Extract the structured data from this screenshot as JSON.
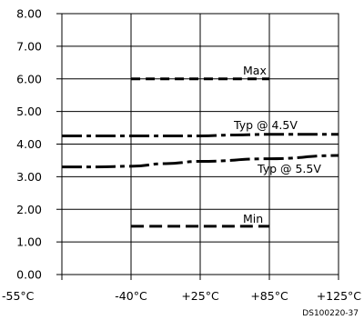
{
  "chart_data": {
    "type": "line",
    "x_categories": [
      "-55°C",
      "-40°C",
      "+25°C",
      "+85°C",
      "+125°C"
    ],
    "y_ticks": [
      "0.00",
      "1.00",
      "2.00",
      "3.00",
      "4.00",
      "5.00",
      "6.00",
      "7.00",
      "8.00"
    ],
    "ylim": [
      0,
      8
    ],
    "grid": true,
    "series": [
      {
        "name": "Max",
        "style": "dashed",
        "x": [
          1,
          3
        ],
        "y": [
          6.0,
          6.0
        ]
      },
      {
        "name": "Typ @ 4.5V",
        "style": "dash-dot",
        "x": [
          0,
          1,
          2,
          2.5,
          3,
          4
        ],
        "y": [
          4.25,
          4.25,
          4.25,
          4.28,
          4.3,
          4.3
        ]
      },
      {
        "name": "Typ @ 5.5V",
        "style": "dash-dot",
        "x": [
          0,
          0.5,
          1,
          1.5,
          2,
          3,
          4
        ],
        "y": [
          3.3,
          3.3,
          3.32,
          3.4,
          3.47,
          3.55,
          3.65
        ]
      },
      {
        "name": "Min",
        "style": "long-dash",
        "x": [
          1,
          3
        ],
        "y": [
          1.48,
          1.48
        ]
      }
    ],
    "series_labels": [
      "Max",
      "Typ @ 4.5V",
      "Typ @ 5.5V",
      "Min"
    ],
    "figure_code": "DS100220-37"
  }
}
